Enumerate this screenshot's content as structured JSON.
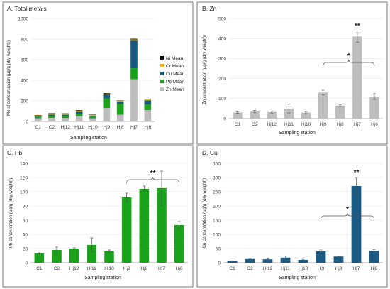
{
  "figure": {
    "chart_data": [
      {
        "id": "A",
        "type": "bar",
        "stacked": true,
        "title": "A. Total metals",
        "xlabel": "Sampling station",
        "ylabel": "Metal concentration (µg/g (dry weight))",
        "ylim": [
          0,
          1000
        ],
        "ticks": [
          0,
          200,
          400,
          600,
          800,
          1000
        ],
        "grid": true,
        "legend": "right",
        "categories": [
          "C1",
          "C2",
          "Hj12",
          "Hj11",
          "Hj10",
          "Hj9",
          "Hj8",
          "Hj7",
          "Hj6"
        ],
        "series": [
          {
            "name": "Zn Mean",
            "color": "#bdbdbd",
            "values": [
              30,
              35,
              33,
              50,
              30,
              130,
              65,
              410,
              110
            ]
          },
          {
            "name": "Pb Mean",
            "color": "#1aa31a",
            "values": [
              13,
              18,
              20,
              25,
              16,
              92,
              104,
              105,
              53
            ]
          },
          {
            "name": "Cu Mean",
            "color": "#1b5a82",
            "values": [
              5,
              13,
              12,
              18,
              10,
              40,
              22,
              270,
              42
            ]
          },
          {
            "name": "Cr Mean",
            "color": "#f2b800",
            "values": [
              8,
              9,
              9,
              10,
              7,
              8,
              8,
              12,
              9
            ]
          },
          {
            "name": "Ni Mean",
            "color": "#000000",
            "values": [
              4,
              4,
              4,
              5,
              3,
              5,
              4,
              6,
              5
            ]
          }
        ],
        "legend_order": [
          "Ni Mean",
          "Cr Mean",
          "Cu Mean",
          "Pb Mean",
          "Zn Mean"
        ]
      },
      {
        "id": "B",
        "type": "bar",
        "title": "B. Zn",
        "xlabel": "Sampling station",
        "ylabel": "Zn concentration (µg/g (dry weight))",
        "ylim": [
          0,
          500
        ],
        "ticks": [
          0,
          100,
          200,
          300,
          400,
          500
        ],
        "grid": true,
        "color": "#bdbdbd",
        "categories": [
          "C1",
          "C2",
          "Hj12",
          "Hj11",
          "Hj10",
          "Hj9",
          "Hj8",
          "Hj7",
          "Hj6"
        ],
        "values": [
          30,
          35,
          33,
          50,
          30,
          130,
          65,
          410,
          110
        ],
        "errors": [
          4,
          6,
          5,
          22,
          5,
          12,
          5,
          28,
          14
        ],
        "bracket": {
          "from": 5,
          "to": 8,
          "level": 280,
          "label": "*"
        },
        "top_label": {
          "index": 7,
          "label": "**"
        }
      },
      {
        "id": "C",
        "type": "bar",
        "title": "C. Pb",
        "xlabel": "Sampling station",
        "ylabel": "Pb concentration (µg/g (dry weight))",
        "ylim": [
          0,
          140
        ],
        "ticks": [
          0,
          20,
          40,
          60,
          80,
          100,
          120,
          140
        ],
        "grid": true,
        "color": "#1aa31a",
        "categories": [
          "C1",
          "C2",
          "Hj12",
          "Hj11",
          "Hj10",
          "Hj9",
          "Hj8",
          "Hj7",
          "Hj6"
        ],
        "values": [
          13,
          18,
          20,
          25,
          16,
          92,
          104,
          105,
          53
        ],
        "errors": [
          1,
          4,
          1,
          10,
          2,
          6,
          4,
          24,
          5
        ],
        "bracket": {
          "from": 5,
          "to": 8,
          "level": 117,
          "label": "**"
        }
      },
      {
        "id": "D",
        "type": "bar",
        "title": "D. Cu",
        "xlabel": "Sampling station",
        "ylabel": "Cu concentration (µg/g (dry weight))",
        "ylim": [
          0,
          350
        ],
        "ticks": [
          0,
          50,
          100,
          150,
          200,
          250,
          300,
          350
        ],
        "grid": true,
        "color": "#1b5a82",
        "categories": [
          "C1",
          "C2",
          "Hj12",
          "Hj11",
          "Hj10",
          "Hj9",
          "Hj8",
          "Hj7",
          "Hj6"
        ],
        "values": [
          5,
          13,
          12,
          18,
          10,
          40,
          22,
          270,
          42
        ],
        "errors": [
          1,
          2,
          2,
          6,
          2,
          5,
          2,
          30,
          5
        ],
        "bracket": {
          "from": 5,
          "to": 8,
          "level": 165,
          "label": "*"
        },
        "top_label": {
          "index": 7,
          "label": "**"
        }
      }
    ]
  }
}
